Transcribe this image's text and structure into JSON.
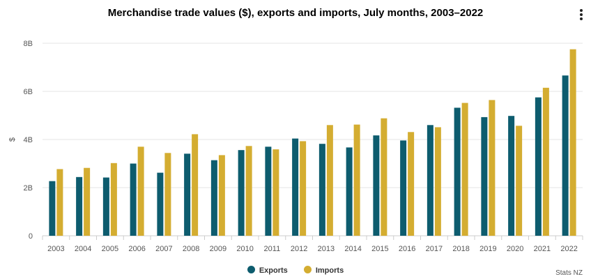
{
  "title": "Merchandise trade values ($), exports and imports, July months, 2003–2022",
  "menu_icon": "more-vertical-icon",
  "credit": "Stats NZ",
  "colors": {
    "exports": "#0d5c6e",
    "imports": "#d4ad31",
    "grid": "#e6e6e6",
    "axis": "#cccccc"
  },
  "legend": [
    {
      "name": "Exports",
      "color": "#0d5c6e"
    },
    {
      "name": "Imports",
      "color": "#d4ad31"
    }
  ],
  "chart_data": {
    "type": "bar",
    "title": "Merchandise trade values ($), exports and imports, July months, 2003–2022",
    "xlabel": "",
    "ylabel": "$",
    "ylim": [
      0,
      8
    ],
    "y_ticks": [
      0,
      2,
      4,
      6,
      8
    ],
    "y_tick_labels": [
      "0",
      "2B",
      "4B",
      "6B",
      "8B"
    ],
    "categories": [
      "2003",
      "2004",
      "2005",
      "2006",
      "2007",
      "2008",
      "2009",
      "2010",
      "2011",
      "2012",
      "2013",
      "2014",
      "2015",
      "2016",
      "2017",
      "2018",
      "2019",
      "2020",
      "2021",
      "2022"
    ],
    "series": [
      {
        "name": "Exports",
        "values": [
          2.27,
          2.44,
          2.42,
          3.0,
          2.62,
          3.41,
          3.14,
          3.56,
          3.7,
          4.04,
          3.82,
          3.67,
          4.17,
          3.96,
          4.6,
          5.32,
          4.93,
          4.98,
          5.75,
          6.66
        ]
      },
      {
        "name": "Imports",
        "values": [
          2.77,
          2.82,
          3.02,
          3.7,
          3.44,
          4.22,
          3.35,
          3.73,
          3.59,
          3.93,
          4.6,
          4.62,
          4.88,
          4.31,
          4.51,
          5.52,
          5.64,
          4.57,
          6.15,
          7.75
        ]
      }
    ],
    "grid": true,
    "legend_position": "bottom-center"
  }
}
